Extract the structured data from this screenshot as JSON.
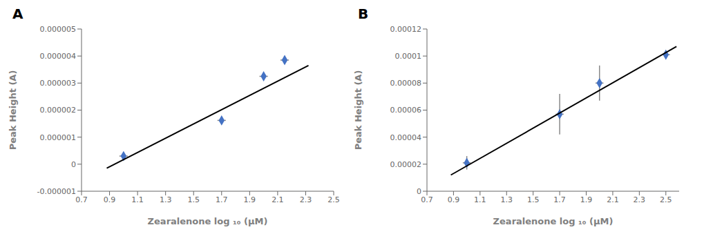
{
  "chart_data": [
    {
      "type": "scatter",
      "annotation": "A",
      "x_label": "Zearalenone log ₁₀ (μM)",
      "y_label": "Peak Height (A)",
      "grid": false,
      "xlim": [
        0.7,
        2.5
      ],
      "xticks": [
        0.7,
        0.9,
        1.1,
        1.3,
        1.5,
        1.7,
        1.9,
        2.1,
        2.3,
        2.5
      ],
      "ylim": [
        -1e-06,
        5e-06
      ],
      "yticks": [
        {
          "value": -1e-06,
          "label": "-0.000001"
        },
        0,
        {
          "value": 1e-06,
          "label": "0.000001"
        },
        {
          "value": 2e-06,
          "label": "0.000002"
        },
        {
          "value": 3e-06,
          "label": "0.000003"
        },
        {
          "value": 4e-06,
          "label": "0.000004"
        },
        {
          "value": 5e-06,
          "label": "0.000005"
        }
      ],
      "series": [
        {
          "type": "scatter",
          "color": "#4472C4",
          "marker": "diamond",
          "x": [
            1.0,
            1.7,
            2.0,
            2.15
          ],
          "values": [
            3e-07,
            1.62e-06,
            3.25e-06,
            3.85e-06
          ],
          "y_err": [
            2e-08,
            5e-08,
            3e-08,
            5e-08
          ],
          "x_err": [
            0.03,
            0.03,
            0.03,
            0.03
          ]
        },
        {
          "type": "line",
          "color": "#000000",
          "x": [
            0.88,
            2.32
          ],
          "values": [
            -1.5e-07,
            3.65e-06
          ]
        }
      ]
    },
    {
      "type": "scatter",
      "annotation": "B",
      "x_label": "Zearalenone log ₁₀ (μM)",
      "y_label": "Peak Height (A)",
      "grid": false,
      "xlim": [
        0.7,
        2.6
      ],
      "xticks": [
        0.7,
        0.9,
        1.1,
        1.3,
        1.5,
        1.7,
        1.9,
        2.1,
        2.3,
        2.5
      ],
      "ylim": [
        0,
        0.00012
      ],
      "yticks": [
        0,
        {
          "value": 2e-05,
          "label": "0.00002"
        },
        {
          "value": 4e-05,
          "label": "0.00004"
        },
        {
          "value": 6e-05,
          "label": "0.00006"
        },
        {
          "value": 8e-05,
          "label": "0.00008"
        },
        {
          "value": 0.0001,
          "label": "0.0001"
        },
        {
          "value": 0.00012,
          "label": "0.00012"
        }
      ],
      "series": [
        {
          "type": "scatter",
          "color": "#4472C4",
          "marker": "diamond",
          "x": [
            1.0,
            1.7,
            2.0,
            2.5
          ],
          "values": [
            2.1e-05,
            5.7e-05,
            8e-05,
            0.000101
          ],
          "y_err": [
            5e-06,
            1.5e-05,
            1.3e-05,
            3e-06
          ],
          "x_err": [
            0.03,
            0.03,
            0.03,
            0.03
          ]
        },
        {
          "type": "line",
          "color": "#000000",
          "x": [
            0.88,
            2.58
          ],
          "values": [
            1.2e-05,
            0.000107
          ]
        }
      ]
    }
  ]
}
